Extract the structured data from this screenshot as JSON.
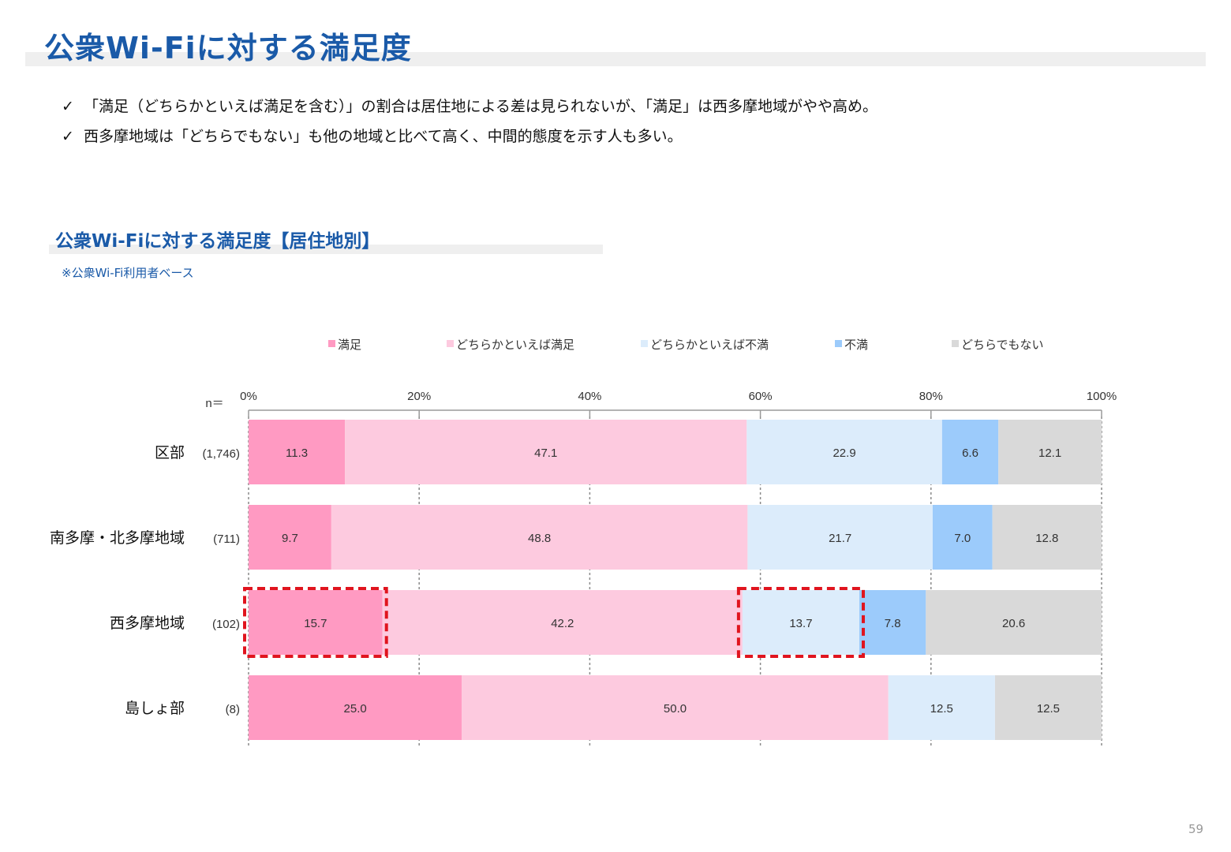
{
  "page": {
    "title": "公衆Wi-Fiに対する満足度",
    "bullets": [
      "「満足（どちらかといえば満足を含む）」の割合は居住地による差は見られないが、「満足」は西多摩地域がやや高め。",
      "西多摩地域は「どちらでもない」も他の地域と比べて高く、中間的態度を示す人も多い。"
    ],
    "check_icon": "✓",
    "subtitle": "公衆Wi-Fiに対する満足度【居住地別】",
    "note": "※公衆Wi-Fi利用者ベース",
    "page_number": "59"
  },
  "chart_data": {
    "type": "bar",
    "orientation": "horizontal",
    "stacked": "100%",
    "n_label": "n＝",
    "categories": [
      "区部",
      "南多摩・北多摩地域",
      "西多摩地域",
      "島しょ部"
    ],
    "n_values": [
      "(1,746)",
      "(711)",
      "(102)",
      "(8)"
    ],
    "series": [
      {
        "name": "満足",
        "color": "#ff9ac2",
        "values": [
          11.3,
          9.7,
          15.7,
          25.0
        ]
      },
      {
        "name": "どちらかといえば満足",
        "color": "#fdcadf",
        "values": [
          47.1,
          48.8,
          42.2,
          50.0
        ]
      },
      {
        "name": "どちらかといえば不満",
        "color": "#dcecfb",
        "values": [
          22.9,
          21.7,
          13.7,
          12.5
        ]
      },
      {
        "name": "不満",
        "color": "#9ccbfb",
        "values": [
          6.6,
          7.0,
          7.8,
          0
        ]
      },
      {
        "name": "どちらでもない",
        "color": "#d9d9d9",
        "values": [
          12.1,
          12.8,
          20.6,
          12.5
        ]
      }
    ],
    "xlim": [
      0,
      100
    ],
    "xticks": [
      "0%",
      "20%",
      "40%",
      "60%",
      "80%",
      "100%"
    ],
    "legend_position": "top",
    "highlights": [
      {
        "category": "西多摩地域",
        "series": "満足"
      },
      {
        "category": "西多摩地域",
        "series": "どちらかといえば不満"
      }
    ],
    "highlight_color": "#e0141e"
  }
}
